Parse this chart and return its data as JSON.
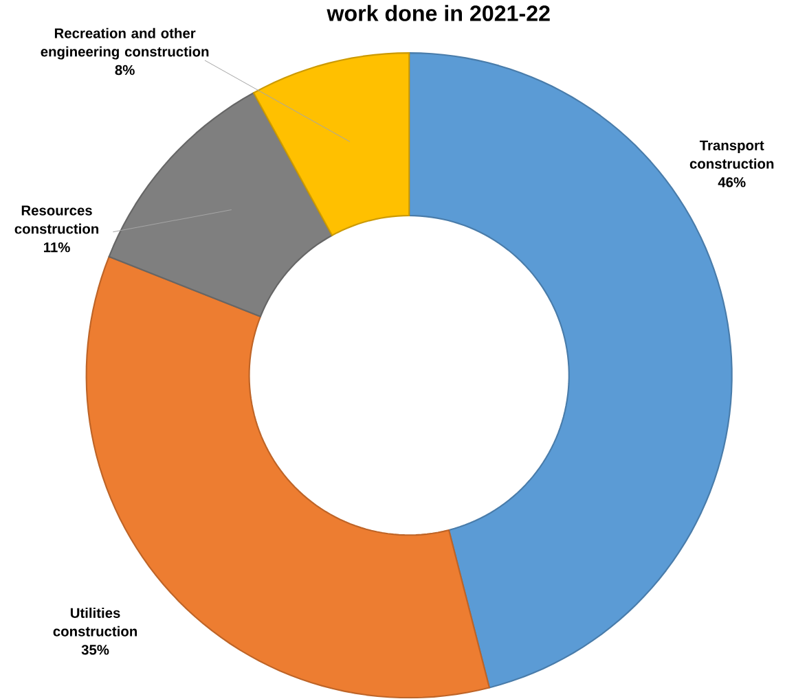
{
  "chart_data": {
    "type": "donut",
    "title": "work done in 2021-22",
    "categories": [
      "Transport construction",
      "Utilities construction",
      "Resources construction",
      "Recreation and other engineering construction"
    ],
    "values": [
      46,
      35,
      11,
      8
    ],
    "value_labels": [
      "46%",
      "35%",
      "11%",
      "8%"
    ],
    "colors": [
      "#5b9bd5",
      "#ed7d31",
      "#7f7f7f",
      "#ffc000"
    ]
  }
}
